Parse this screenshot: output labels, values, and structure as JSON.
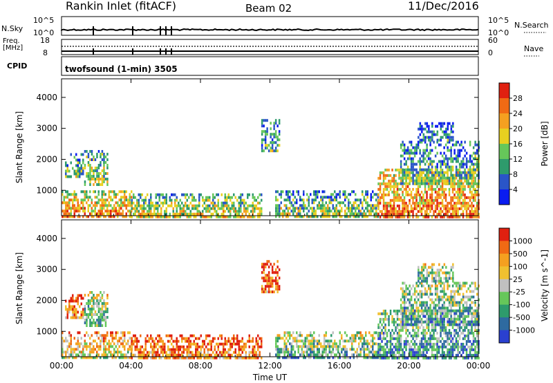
{
  "header": {
    "station": "Rankin Inlet (fitACF)",
    "beam": "Beam 02",
    "date": "11/Dec/2016"
  },
  "strip_labels": {
    "nsky": "N.Sky",
    "nsky_top": "10^5",
    "nsky_bottom": "10^0",
    "nsearch": "N.Search",
    "nsearch_top": "10^5",
    "nsearch_bottom": "10^0",
    "freq": "Freq.",
    "freq_unit": "[MHz]",
    "freq_top": "18",
    "freq_bottom": "8",
    "nave": "Nave",
    "nave_top": "60",
    "nave_bottom": "0",
    "cpid": "CPID",
    "cpid_value": "twofsound (1-min) 3505"
  },
  "chart_data": [
    {
      "type": "heatmap",
      "name": "power-panel",
      "xlabel": "",
      "ylabel": "Slant Range [km]",
      "x_range_hours": [
        0,
        24
      ],
      "ylim": [
        180,
        4600
      ],
      "y_ticks": [
        1000,
        2000,
        3000,
        4000
      ],
      "x_tick_labels": [
        "00:00",
        "04:00",
        "08:00",
        "12:00",
        "16:00",
        "20:00",
        "00:00"
      ],
      "colorbar": {
        "label": "Power [dB]",
        "ticks": [
          "4",
          "8",
          "12",
          "16",
          "20",
          "24",
          "28"
        ],
        "colors": [
          "#0a1cf0",
          "#2a55c8",
          "#2e9b6c",
          "#66c75a",
          "#e8d020",
          "#f5a020",
          "#f06a14",
          "#e02010"
        ]
      },
      "echo_regions": [
        {
          "t": [
            0.0,
            4.0
          ],
          "r": [
            180,
            1000
          ],
          "level": 0.75
        },
        {
          "t": [
            0.2,
            1.2
          ],
          "r": [
            1400,
            2200
          ],
          "level": 0.45
        },
        {
          "t": [
            1.3,
            2.6
          ],
          "r": [
            1200,
            2300
          ],
          "level": 0.55
        },
        {
          "t": [
            4.0,
            11.5
          ],
          "r": [
            180,
            900
          ],
          "level": 0.6
        },
        {
          "t": [
            11.5,
            12.5
          ],
          "r": [
            2300,
            3300
          ],
          "level": 0.4
        },
        {
          "t": [
            12.3,
            18.2
          ],
          "r": [
            180,
            1000
          ],
          "level": 0.5
        },
        {
          "t": [
            18.2,
            24.0
          ],
          "r": [
            180,
            1700
          ],
          "level": 0.8
        },
        {
          "t": [
            19.5,
            24.0
          ],
          "r": [
            1200,
            2600
          ],
          "level": 0.45
        },
        {
          "t": [
            20.5,
            22.5
          ],
          "r": [
            2600,
            3200
          ],
          "level": 0.3
        }
      ]
    },
    {
      "type": "heatmap",
      "name": "velocity-panel",
      "xlabel": "Time UT",
      "ylabel": "Slant Range [km]",
      "x_range_hours": [
        0,
        24
      ],
      "ylim": [
        180,
        4600
      ],
      "y_ticks": [
        1000,
        2000,
        3000,
        4000
      ],
      "x_tick_labels": [
        "00:00",
        "04:00",
        "08:00",
        "12:00",
        "16:00",
        "20:00",
        "00:00"
      ],
      "colorbar": {
        "label": "Velocity [m s^-1]",
        "ticks": [
          "1000",
          "500",
          "100",
          "25",
          "-25",
          "-100",
          "-500",
          "-1000"
        ],
        "colors": [
          "#2a40d0",
          "#2e6aa0",
          "#2e9b6c",
          "#66c75a",
          "#c0c0c0",
          "#f0c030",
          "#f5a020",
          "#f06a14",
          "#e02010"
        ]
      },
      "echo_regions": [
        {
          "t": [
            0.0,
            4.0
          ],
          "r": [
            180,
            1000
          ],
          "level": 0.5
        },
        {
          "t": [
            0.2,
            1.2
          ],
          "r": [
            1400,
            2200
          ],
          "level": 0.3
        },
        {
          "t": [
            1.3,
            2.6
          ],
          "r": [
            1200,
            2300
          ],
          "level": 0.7
        },
        {
          "t": [
            4.0,
            11.5
          ],
          "r": [
            180,
            900
          ],
          "level": 0.3
        },
        {
          "t": [
            11.5,
            12.5
          ],
          "r": [
            2300,
            3300
          ],
          "level": 0.25
        },
        {
          "t": [
            12.3,
            18.2
          ],
          "r": [
            180,
            1000
          ],
          "level": 0.7
        },
        {
          "t": [
            18.2,
            24.0
          ],
          "r": [
            180,
            1700
          ],
          "level": 0.8
        },
        {
          "t": [
            19.5,
            24.0
          ],
          "r": [
            1200,
            2600
          ],
          "level": 0.75
        },
        {
          "t": [
            20.5,
            22.5
          ],
          "r": [
            2600,
            3200
          ],
          "level": 0.7
        }
      ]
    }
  ],
  "palette": {
    "frame": "#000000",
    "background": "#ffffff"
  }
}
